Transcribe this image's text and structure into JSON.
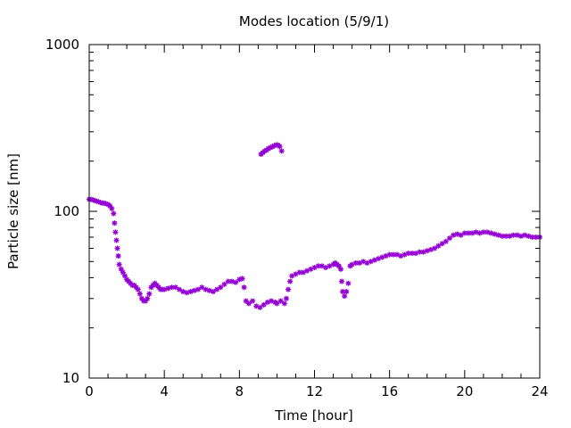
{
  "chart_data": {
    "type": "scatter",
    "title": "Modes location (5/9/1)",
    "xlabel": "Time [hour]",
    "ylabel": "Particle size [nm]",
    "xlim": [
      0,
      24
    ],
    "ylim": [
      10,
      1000
    ],
    "yscale": "log",
    "x_ticks": [
      0,
      4,
      8,
      12,
      16,
      20,
      24
    ],
    "x_tick_labels": [
      "0",
      "4",
      "8",
      "12",
      "16",
      "20",
      "24"
    ],
    "y_ticks": [
      10,
      100,
      1000
    ],
    "y_tick_labels": [
      "10",
      "100",
      "1000"
    ],
    "grid": false,
    "marker_color": "#9400d3",
    "series": [
      {
        "points": [
          [
            0.0,
            118
          ],
          [
            0.1,
            118
          ],
          [
            0.2,
            117
          ],
          [
            0.3,
            116
          ],
          [
            0.4,
            115
          ],
          [
            0.5,
            114
          ],
          [
            0.6,
            113
          ],
          [
            0.7,
            112
          ],
          [
            0.8,
            112
          ],
          [
            0.9,
            111
          ],
          [
            1.0,
            110
          ],
          [
            1.1,
            108
          ],
          [
            1.2,
            104
          ],
          [
            1.3,
            97
          ],
          [
            1.35,
            85
          ],
          [
            1.4,
            75
          ],
          [
            1.45,
            67
          ],
          [
            1.5,
            60
          ],
          [
            1.55,
            54
          ],
          [
            1.6,
            48
          ],
          [
            1.7,
            45
          ],
          [
            1.8,
            43
          ],
          [
            1.9,
            41
          ],
          [
            2.0,
            39
          ],
          [
            2.1,
            38
          ],
          [
            2.2,
            37
          ],
          [
            2.3,
            36
          ],
          [
            2.4,
            36
          ],
          [
            2.5,
            35
          ],
          [
            2.6,
            34
          ],
          [
            2.7,
            32
          ],
          [
            2.8,
            30
          ],
          [
            2.9,
            29
          ],
          [
            3.0,
            29
          ],
          [
            3.1,
            30
          ],
          [
            3.2,
            32
          ],
          [
            3.3,
            35
          ],
          [
            3.4,
            36
          ],
          [
            3.5,
            37
          ],
          [
            3.6,
            36
          ],
          [
            3.7,
            35
          ],
          [
            3.8,
            34
          ],
          [
            3.9,
            34
          ],
          [
            4.0,
            34
          ],
          [
            4.2,
            34.5
          ],
          [
            4.4,
            35
          ],
          [
            4.6,
            35
          ],
          [
            4.8,
            34
          ],
          [
            5.0,
            33
          ],
          [
            5.2,
            32.5
          ],
          [
            5.4,
            33
          ],
          [
            5.6,
            33.5
          ],
          [
            5.8,
            34
          ],
          [
            6.0,
            35
          ],
          [
            6.2,
            34
          ],
          [
            6.4,
            33.5
          ],
          [
            6.6,
            33
          ],
          [
            6.8,
            34
          ],
          [
            7.0,
            35
          ],
          [
            7.2,
            36.5
          ],
          [
            7.4,
            38
          ],
          [
            7.6,
            38
          ],
          [
            7.8,
            37.5
          ],
          [
            8.0,
            39
          ],
          [
            8.15,
            39.5
          ],
          [
            8.25,
            35
          ],
          [
            8.35,
            29
          ],
          [
            8.5,
            28
          ],
          [
            8.7,
            29
          ],
          [
            8.9,
            27
          ],
          [
            9.1,
            26.5
          ],
          [
            9.3,
            27.5
          ],
          [
            9.5,
            28.5
          ],
          [
            9.7,
            29
          ],
          [
            9.9,
            28.5
          ],
          [
            10.0,
            28
          ],
          [
            10.2,
            29
          ],
          [
            10.4,
            28
          ],
          [
            10.5,
            30
          ],
          [
            10.6,
            34
          ],
          [
            10.7,
            38
          ],
          [
            10.8,
            41
          ],
          [
            11.0,
            42
          ],
          [
            11.2,
            43
          ],
          [
            11.4,
            43
          ],
          [
            11.6,
            44
          ],
          [
            11.8,
            45
          ],
          [
            12.0,
            46
          ],
          [
            12.2,
            47
          ],
          [
            12.4,
            47
          ],
          [
            12.6,
            46
          ],
          [
            12.8,
            47
          ],
          [
            13.0,
            48
          ],
          [
            13.1,
            49
          ],
          [
            13.2,
            48
          ],
          [
            13.3,
            47
          ],
          [
            13.4,
            45
          ],
          [
            13.45,
            38
          ],
          [
            13.5,
            33
          ],
          [
            13.6,
            31
          ],
          [
            13.7,
            33
          ],
          [
            13.8,
            37
          ],
          [
            13.9,
            47
          ],
          [
            14.0,
            48
          ],
          [
            14.2,
            49
          ],
          [
            14.4,
            49
          ],
          [
            14.6,
            50
          ],
          [
            14.8,
            49
          ],
          [
            15.0,
            50
          ],
          [
            15.2,
            51
          ],
          [
            15.4,
            52
          ],
          [
            15.6,
            53
          ],
          [
            15.8,
            54
          ],
          [
            16.0,
            55
          ],
          [
            16.2,
            55
          ],
          [
            16.4,
            55
          ],
          [
            16.6,
            54
          ],
          [
            16.8,
            55
          ],
          [
            17.0,
            56
          ],
          [
            17.2,
            56
          ],
          [
            17.4,
            56
          ],
          [
            17.6,
            57
          ],
          [
            17.8,
            57
          ],
          [
            18.0,
            58
          ],
          [
            18.2,
            59
          ],
          [
            18.4,
            60
          ],
          [
            18.6,
            62
          ],
          [
            18.8,
            64
          ],
          [
            19.0,
            66
          ],
          [
            19.2,
            69
          ],
          [
            19.4,
            72
          ],
          [
            19.6,
            73
          ],
          [
            19.8,
            72
          ],
          [
            20.0,
            74
          ],
          [
            20.2,
            74
          ],
          [
            20.4,
            74
          ],
          [
            20.6,
            75
          ],
          [
            20.8,
            74
          ],
          [
            21.0,
            75
          ],
          [
            21.2,
            75
          ],
          [
            21.4,
            74
          ],
          [
            21.6,
            73
          ],
          [
            21.8,
            72
          ],
          [
            22.0,
            71
          ],
          [
            22.2,
            71
          ],
          [
            22.4,
            71
          ],
          [
            22.6,
            72
          ],
          [
            22.8,
            72
          ],
          [
            23.0,
            71
          ],
          [
            23.2,
            72
          ],
          [
            23.4,
            71
          ],
          [
            23.6,
            70
          ],
          [
            23.8,
            70
          ],
          [
            24.0,
            70
          ],
          [
            9.15,
            220
          ],
          [
            9.25,
            225
          ],
          [
            9.35,
            230
          ],
          [
            9.45,
            233
          ],
          [
            9.55,
            238
          ],
          [
            9.65,
            241
          ],
          [
            9.75,
            244
          ],
          [
            9.85,
            247
          ],
          [
            9.95,
            250
          ],
          [
            10.05,
            250
          ],
          [
            10.15,
            245
          ],
          [
            10.25,
            230
          ]
        ]
      }
    ]
  }
}
